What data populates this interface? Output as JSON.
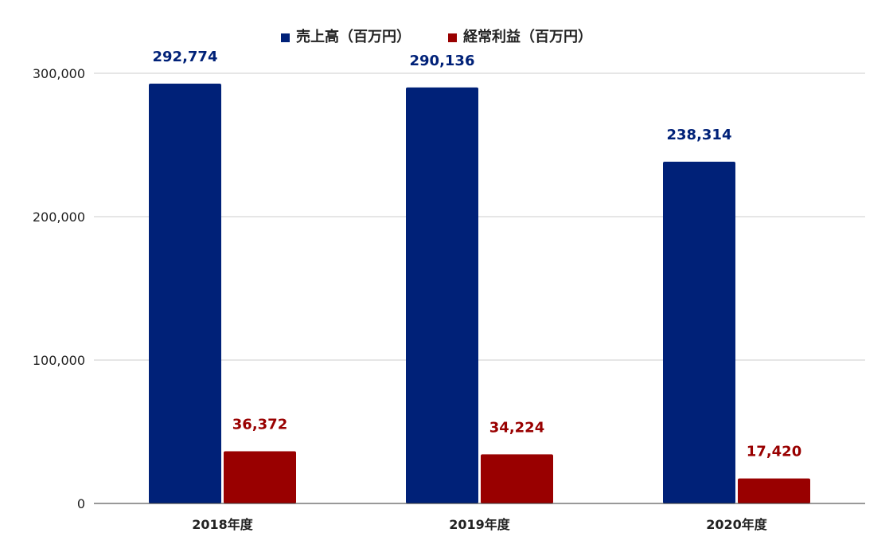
{
  "chart_data": {
    "type": "bar",
    "categories": [
      "2018年度",
      "2019年度",
      "2020年度"
    ],
    "series": [
      {
        "name": "売上高（百万円）",
        "color": "#002178",
        "values": [
          292774,
          290136,
          238314
        ],
        "labels": [
          "292,774",
          "290,136",
          "238,314"
        ]
      },
      {
        "name": "経常利益（百万円）",
        "color": "#990000",
        "values": [
          36372,
          34224,
          17420
        ],
        "labels": [
          "36,372",
          "34,224",
          "17,420"
        ]
      }
    ],
    "ylim": [
      0,
      300000
    ],
    "yticks": [
      {
        "value": 0,
        "label": "0"
      },
      {
        "value": 100000,
        "label": "100,000"
      },
      {
        "value": 200000,
        "label": "200,000"
      },
      {
        "value": 300000,
        "label": "300,000"
      }
    ],
    "grid": true,
    "legend_position": "top-center",
    "title": "",
    "xlabel": "",
    "ylabel": ""
  }
}
